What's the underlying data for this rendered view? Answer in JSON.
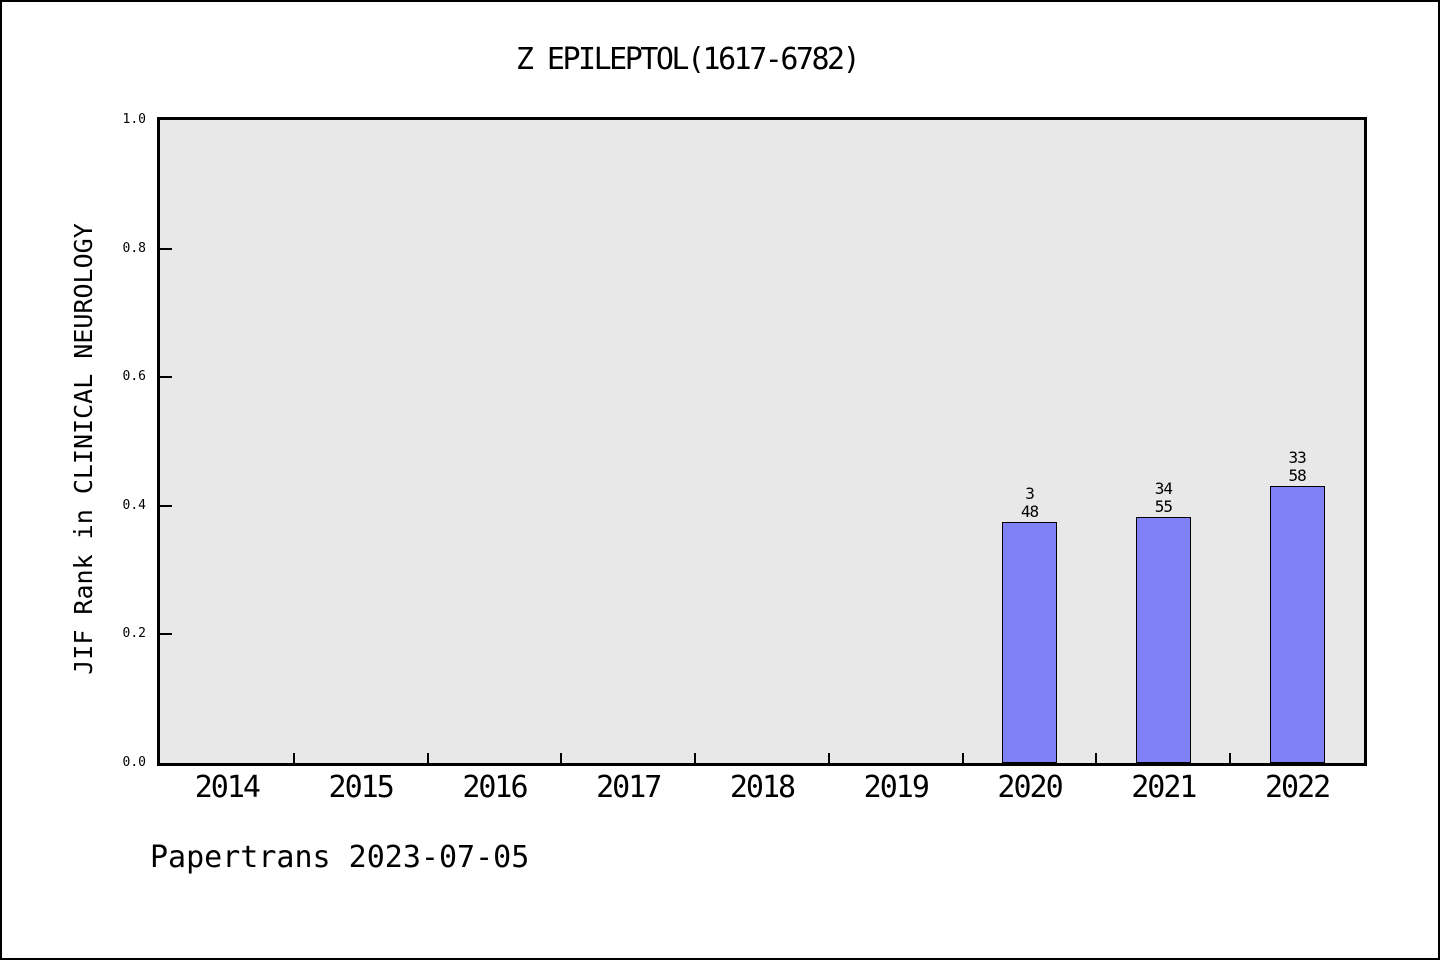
{
  "header": {
    "title": "Z EPILEPTOL(1617-6782)"
  },
  "footer": {
    "note": "Papertrans 2023-07-05"
  },
  "chart_data": {
    "type": "bar",
    "title": "Z EPILEPTOL(1617-6782)",
    "xlabel": "",
    "ylabel": "JIF Rank in CLINICAL NEUROLOGY",
    "categories": [
      "2014",
      "2015",
      "2016",
      "2017",
      "2018",
      "2019",
      "2020",
      "2021",
      "2022"
    ],
    "values": [
      null,
      null,
      null,
      null,
      null,
      null,
      0.375,
      0.382,
      0.431
    ],
    "bars": [
      {
        "category": "2020",
        "value": 0.375,
        "label_top": "3",
        "label_bottom": "48"
      },
      {
        "category": "2021",
        "value": 0.382,
        "label_top": "34",
        "label_bottom": "55"
      },
      {
        "category": "2022",
        "value": 0.431,
        "label_top": "33",
        "label_bottom": "58"
      }
    ],
    "ylim": [
      0.0,
      1.0
    ],
    "yticks": [
      "0.0",
      "0.2",
      "0.4",
      "0.6",
      "0.8",
      "1.0"
    ],
    "grid": false,
    "legend": null,
    "colors": {
      "bar_fill": "#8181f7",
      "bar_edge": "#000000",
      "plot_background": "#e8e8e8",
      "figure_background": "#ffffff",
      "spine": "#000000"
    }
  }
}
